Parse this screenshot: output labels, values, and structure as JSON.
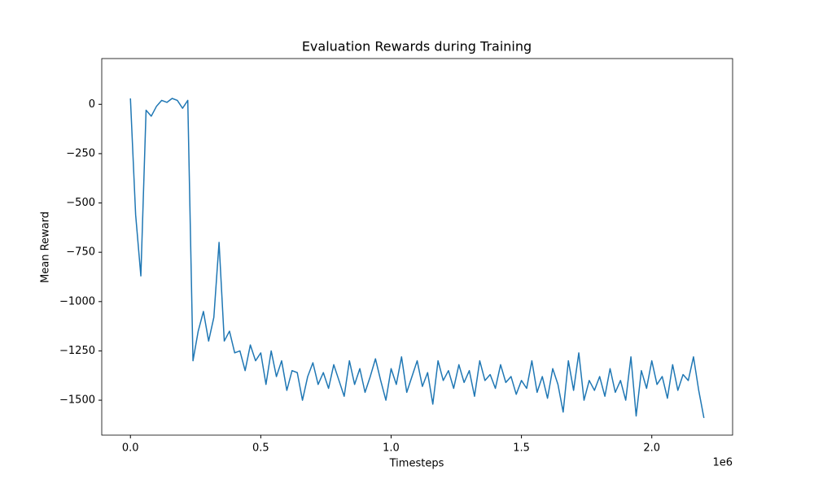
{
  "chart_data": {
    "type": "line",
    "title": "Evaluation Rewards during Training",
    "xlabel": "Timesteps",
    "ylabel": "Mean Reward",
    "x_offset_label": "1e6",
    "xlim": [
      -110000,
      2310000
    ],
    "ylim": [
      -1677,
      232
    ],
    "xticks": [
      {
        "value": 0,
        "label": "0.0"
      },
      {
        "value": 500000,
        "label": "0.5"
      },
      {
        "value": 1000000,
        "label": "1.0"
      },
      {
        "value": 1500000,
        "label": "1.5"
      },
      {
        "value": 2000000,
        "label": "2.0"
      }
    ],
    "yticks": [
      {
        "value": -1500,
        "label": "−1500"
      },
      {
        "value": -1250,
        "label": "−1250"
      },
      {
        "value": -1000,
        "label": "−1000"
      },
      {
        "value": -750,
        "label": "−750"
      },
      {
        "value": -500,
        "label": "−500"
      },
      {
        "value": -250,
        "label": "−250"
      },
      0
    ],
    "x": [
      0,
      20000,
      40000,
      60000,
      80000,
      100000,
      120000,
      140000,
      160000,
      180000,
      200000,
      220000,
      240000,
      260000,
      280000,
      300000,
      320000,
      340000,
      360000,
      380000,
      400000,
      420000,
      440000,
      460000,
      480000,
      500000,
      520000,
      540000,
      560000,
      580000,
      600000,
      620000,
      640000,
      660000,
      680000,
      700000,
      720000,
      740000,
      760000,
      780000,
      800000,
      820000,
      840000,
      860000,
      880000,
      900000,
      920000,
      940000,
      960000,
      980000,
      1000000,
      1020000,
      1040000,
      1060000,
      1080000,
      1100000,
      1120000,
      1140000,
      1160000,
      1180000,
      1200000,
      1220000,
      1240000,
      1260000,
      1280000,
      1300000,
      1320000,
      1340000,
      1360000,
      1380000,
      1400000,
      1420000,
      1440000,
      1460000,
      1480000,
      1500000,
      1520000,
      1540000,
      1560000,
      1580000,
      1600000,
      1620000,
      1640000,
      1660000,
      1680000,
      1700000,
      1720000,
      1740000,
      1760000,
      1780000,
      1800000,
      1820000,
      1840000,
      1860000,
      1880000,
      1900000,
      1920000,
      1940000,
      1960000,
      1980000,
      2000000,
      2020000,
      2040000,
      2060000,
      2080000,
      2100000,
      2120000,
      2140000,
      2160000,
      2180000,
      2200000
    ],
    "series": [
      {
        "name": "Mean Reward",
        "color": "#1f77b4",
        "values": [
          30,
          -560,
          -870,
          -30,
          -60,
          -10,
          20,
          10,
          30,
          20,
          -20,
          20,
          -1300,
          -1150,
          -1050,
          -1200,
          -1080,
          -700,
          -1200,
          -1150,
          -1260,
          -1250,
          -1350,
          -1220,
          -1300,
          -1260,
          -1420,
          -1250,
          -1380,
          -1300,
          -1450,
          -1350,
          -1360,
          -1500,
          -1380,
          -1310,
          -1420,
          -1360,
          -1440,
          -1320,
          -1400,
          -1480,
          -1300,
          -1420,
          -1340,
          -1460,
          -1380,
          -1290,
          -1400,
          -1500,
          -1340,
          -1420,
          -1280,
          -1460,
          -1380,
          -1300,
          -1430,
          -1360,
          -1520,
          -1300,
          -1400,
          -1350,
          -1440,
          -1320,
          -1410,
          -1350,
          -1480,
          -1300,
          -1400,
          -1370,
          -1440,
          -1320,
          -1410,
          -1380,
          -1470,
          -1400,
          -1440,
          -1300,
          -1460,
          -1380,
          -1490,
          -1340,
          -1420,
          -1560,
          -1300,
          -1450,
          -1260,
          -1500,
          -1400,
          -1450,
          -1380,
          -1480,
          -1340,
          -1460,
          -1400,
          -1500,
          -1280,
          -1580,
          -1350,
          -1440,
          -1300,
          -1420,
          -1380,
          -1490,
          -1320,
          -1450,
          -1370,
          -1400,
          -1280,
          -1450,
          -1590
        ]
      }
    ]
  }
}
